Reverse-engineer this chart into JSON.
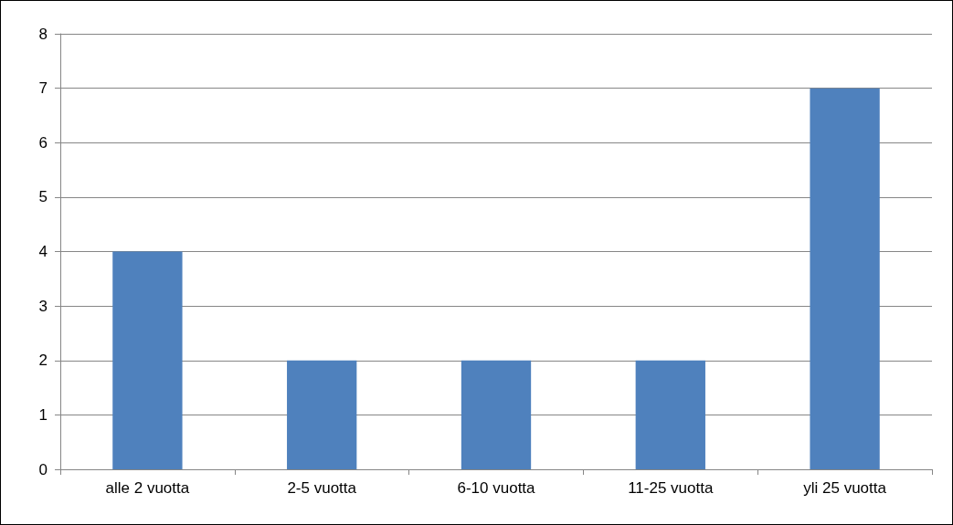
{
  "chart_data": {
    "type": "bar",
    "categories": [
      "alle 2 vuotta",
      "2-5 vuotta",
      "6-10 vuotta",
      "11-25 vuotta",
      "yli 25 vuotta"
    ],
    "values": [
      4,
      2,
      2,
      2,
      7
    ],
    "color": "#4f81bd",
    "ylim": [
      0,
      8
    ],
    "yticks": [
      0,
      1,
      2,
      3,
      4,
      5,
      6,
      7,
      8
    ],
    "grid": "y"
  }
}
